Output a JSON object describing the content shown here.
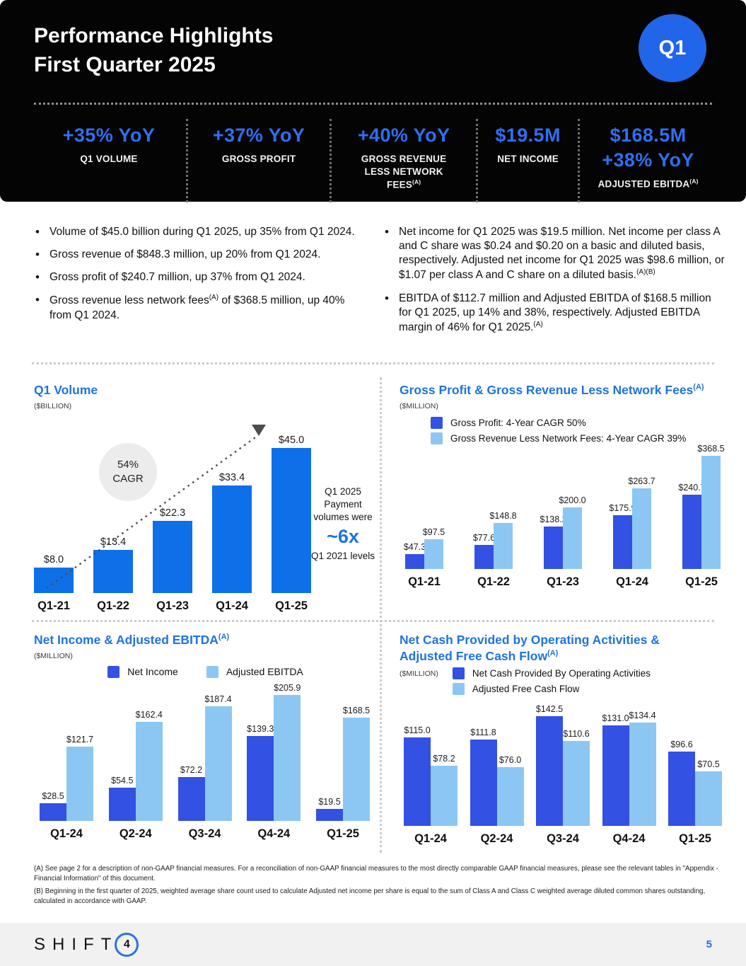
{
  "header": {
    "title_line1": "Performance Highlights",
    "title_line2": "First Quarter 2025",
    "badge": "Q1",
    "kpis": [
      {
        "values": [
          "+35% YoY"
        ],
        "label": [
          {
            "t": "Q1 VOLUME"
          }
        ]
      },
      {
        "values": [
          "+37% YoY"
        ],
        "label": [
          {
            "t": "GROSS PROFIT"
          }
        ]
      },
      {
        "values": [
          "+40% YoY"
        ],
        "label": [
          {
            "t": "GROSS REVENUE LESS NETWORK FEES"
          },
          {
            "sup": "(A)"
          }
        ]
      },
      {
        "values": [
          "$19.5M"
        ],
        "label": [
          {
            "t": "NET INCOME"
          }
        ]
      },
      {
        "values": [
          "$168.5M",
          "+38% YoY"
        ],
        "label": [
          {
            "t": "ADJUSTED EBITDA"
          },
          {
            "sup": "(A)"
          }
        ]
      }
    ]
  },
  "bullets": {
    "left": [
      [
        {
          "t": "Volume of $45.0 billion during Q1 2025, up 35% from Q1 2024."
        }
      ],
      [
        {
          "t": "Gross revenue of $848.3 million, up 20% from Q1 2024."
        }
      ],
      [
        {
          "t": "Gross profit of $240.7 million, up 37% from Q1 2024."
        }
      ],
      [
        {
          "t": "Gross revenue less network fees"
        },
        {
          "sup": "(A)"
        },
        {
          "t": " of $368.5 million, up 40% from Q1 2024."
        }
      ]
    ],
    "right": [
      [
        {
          "t": "Net income for Q1 2025 was $19.5 million. Net income per class A and C share was $0.24 and $0.20 on a basic and diluted basis, respectively. Adjusted net income for Q1 2025 was $98.6 million, or $1.07 per class A and C share on a diluted basis."
        },
        {
          "sup": "(A)(B)"
        }
      ],
      [
        {
          "t": "EBITDA of $112.7 million and Adjusted EBITDA of $168.5 million for Q1 2025, up 14% and 38%, respectively. Adjusted EBITDA margin of 46% for Q1 2025."
        },
        {
          "sup": "(A)"
        }
      ]
    ]
  },
  "chart_data": [
    {
      "type": "bar",
      "title": "Q1 Volume",
      "title_sup": "",
      "unit": "($BILLION)",
      "categories": [
        "Q1-21",
        "Q1-22",
        "Q1-23",
        "Q1-24",
        "Q1-25"
      ],
      "series": [
        {
          "name": "Q1 Volume",
          "color": "#0e70e8",
          "values": [
            8.0,
            13.4,
            22.3,
            33.4,
            45.0
          ],
          "labels": [
            "$8.0",
            "$13.4",
            "$22.3",
            "$33.4",
            "$45.0"
          ]
        }
      ],
      "ylim": [
        0,
        45
      ],
      "grid": false,
      "annotations": {
        "cagr_line1": "54%",
        "cagr_line2": "CAGR",
        "note_top": "Q1 2025 Payment volumes were",
        "note_multiple": "~6x",
        "note_bottom": "Q1 2021 levels"
      }
    },
    {
      "type": "bar",
      "title": "Gross Profit & Gross Revenue Less Network Fees",
      "title_sup": "(A)",
      "unit": "($MILLION)",
      "legend": [
        "Gross Profit: 4-Year CAGR 50%",
        "Gross Revenue Less Network Fees: 4-Year CAGR 39%"
      ],
      "legend_position": "top-left",
      "categories": [
        "Q1-21",
        "Q1-22",
        "Q1-23",
        "Q1-24",
        "Q1-25"
      ],
      "series": [
        {
          "name": "Gross Profit",
          "color": "#3351e2",
          "values": [
            47.3,
            77.6,
            138.2,
            175.9,
            240.7
          ],
          "labels": [
            "$47.3",
            "$77.6",
            "$138.2",
            "$175.9",
            "$240.7"
          ]
        },
        {
          "name": "Gross Revenue Less Network Fees",
          "color": "#8cc7f4",
          "values": [
            97.5,
            148.8,
            200.0,
            263.7,
            368.5
          ],
          "labels": [
            "$97.5",
            "$148.8",
            "$200.0",
            "$263.7",
            "$368.5"
          ]
        }
      ],
      "ylim": [
        0,
        368.5
      ],
      "grid": false
    },
    {
      "type": "bar",
      "title": "Net Income & Adjusted EBITDA",
      "title_sup": "(A)",
      "unit": "($MILLION)",
      "legend": [
        "Net Income",
        "Adjusted EBITDA"
      ],
      "legend_position": "top-center",
      "categories": [
        "Q1-24",
        "Q2-24",
        "Q3-24",
        "Q4-24",
        "Q1-25"
      ],
      "series": [
        {
          "name": "Net Income",
          "color": "#3351e2",
          "values": [
            28.5,
            54.5,
            72.2,
            139.3,
            19.5
          ],
          "labels": [
            "$28.5",
            "$54.5",
            "$72.2",
            "$139.3",
            "$19.5"
          ]
        },
        {
          "name": "Adjusted EBITDA",
          "color": "#8cc7f4",
          "values": [
            121.7,
            162.4,
            187.4,
            205.9,
            168.5
          ],
          "labels": [
            "$121.7",
            "$162.4",
            "$187.4",
            "$205.9",
            "$168.5"
          ]
        }
      ],
      "ylim": [
        0,
        205.9
      ],
      "grid": false
    },
    {
      "type": "bar",
      "title": "Net Cash Provided by Operating Activities & Adjusted Free Cash Flow",
      "title_sup": "(A)",
      "unit": "($MILLION)",
      "legend": [
        "Net Cash Provided By Operating Activities",
        "Adjusted Free Cash Flow"
      ],
      "legend_position": "top-left",
      "categories": [
        "Q1-24",
        "Q2-24",
        "Q3-24",
        "Q4-24",
        "Q1-25"
      ],
      "series": [
        {
          "name": "Net Cash Provided By Operating Activities",
          "color": "#3351e2",
          "values": [
            115.0,
            111.8,
            142.5,
            131.0,
            96.6
          ],
          "labels": [
            "$115.0",
            "$111.8",
            "$142.5",
            "$131.0",
            "$96.6"
          ]
        },
        {
          "name": "Adjusted Free Cash Flow",
          "color": "#8cc7f4",
          "values": [
            78.2,
            76.0,
            110.6,
            134.4,
            70.5
          ],
          "labels": [
            "$78.2",
            "$76.0",
            "$110.6",
            "$134.4",
            "$70.5"
          ]
        }
      ],
      "ylim": [
        0,
        142.5
      ],
      "grid": false
    }
  ],
  "footnotes": {
    "a": "(A) See page 2 for a description of non-GAAP financial measures. For a reconciliation of non-GAAP financial measures to the most directly comparable GAAP financial measures, please see the relevant tables in \"Appendix - Financial Information\" of this document.",
    "b": "(B) Beginning in the first quarter of 2025, weighted average share count used to calculate Adjusted net income per share is equal to the sum of Class A and Class C weighted average diluted common shares outstanding, calculated in accordance with GAAP."
  },
  "footer": {
    "logo_text": "SHIFT",
    "logo_digit": "4",
    "page_number": "5"
  },
  "colors": {
    "accent_blue": "#2f6ff2",
    "title_blue": "#1e73e0",
    "badge_blue": "#2166e8",
    "dark_series": "#3351e2",
    "light_series": "#8cc7f4",
    "volume_bar": "#0e70e8"
  }
}
